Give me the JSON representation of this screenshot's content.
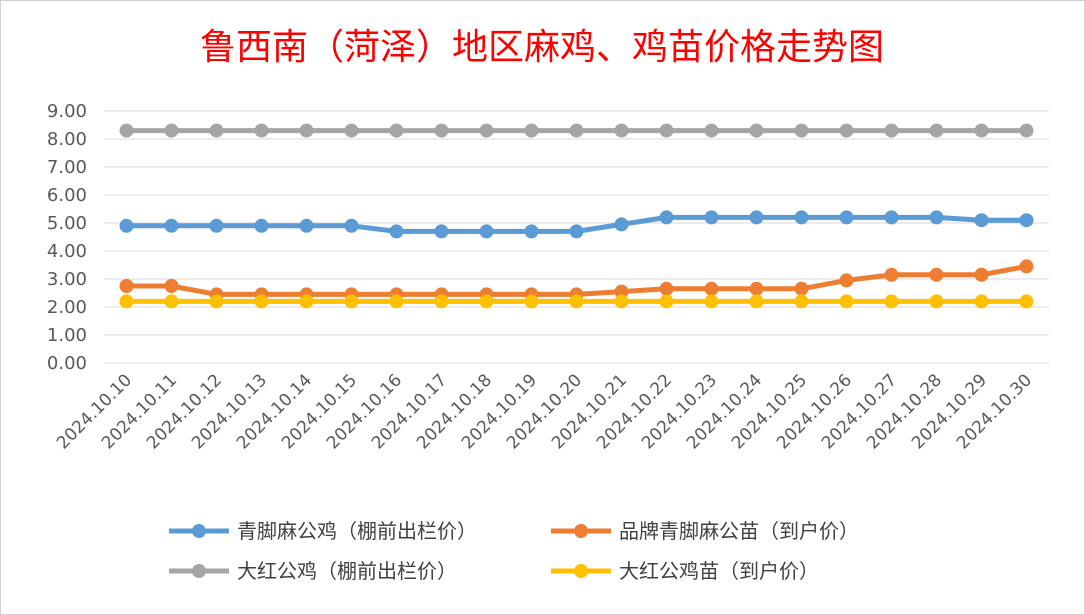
{
  "chart_data": {
    "type": "line",
    "title": "鲁西南（菏泽）地区麻鸡、鸡苗价格走势图",
    "xlabel": "",
    "ylabel": "",
    "ylim": [
      0,
      9
    ],
    "yticks": [
      "0.00",
      "1.00",
      "2.00",
      "3.00",
      "4.00",
      "5.00",
      "6.00",
      "7.00",
      "8.00",
      "9.00"
    ],
    "grid": true,
    "legend_position": "bottom",
    "categories": [
      "2024.10.10",
      "2024.10.11",
      "2024.10.12",
      "2024.10.13",
      "2024.10.14",
      "2024.10.15",
      "2024.10.16",
      "2024.10.17",
      "2024.10.18",
      "2024.10.19",
      "2024.10.20",
      "2024.10.21",
      "2024.10.22",
      "2024.10.23",
      "2024.10.24",
      "2024.10.25",
      "2024.10.26",
      "2024.10.27",
      "2024.10.28",
      "2024.10.29",
      "2024.10.30"
    ],
    "series": [
      {
        "name": "青脚麻公鸡（棚前出栏价）",
        "color": "#5b9bd5",
        "values": [
          4.9,
          4.9,
          4.9,
          4.9,
          4.9,
          4.9,
          4.7,
          4.7,
          4.7,
          4.7,
          4.7,
          4.95,
          5.2,
          5.2,
          5.2,
          5.2,
          5.2,
          5.2,
          5.2,
          5.1,
          5.1
        ]
      },
      {
        "name": "品牌青脚麻公苗（到户价）",
        "color": "#ed7d31",
        "values": [
          2.75,
          2.75,
          2.45,
          2.45,
          2.45,
          2.45,
          2.45,
          2.45,
          2.45,
          2.45,
          2.45,
          2.55,
          2.65,
          2.65,
          2.65,
          2.65,
          2.95,
          3.15,
          3.15,
          3.15,
          3.45
        ]
      },
      {
        "name": "大红公鸡（棚前出栏价）",
        "color": "#a5a5a5",
        "values": [
          8.3,
          8.3,
          8.3,
          8.3,
          8.3,
          8.3,
          8.3,
          8.3,
          8.3,
          8.3,
          8.3,
          8.3,
          8.3,
          8.3,
          8.3,
          8.3,
          8.3,
          8.3,
          8.3,
          8.3,
          8.3
        ]
      },
      {
        "name": "大红公鸡苗（到户价）",
        "color": "#ffc000",
        "values": [
          2.2,
          2.2,
          2.2,
          2.2,
          2.2,
          2.2,
          2.2,
          2.2,
          2.2,
          2.2,
          2.2,
          2.2,
          2.2,
          2.2,
          2.2,
          2.2,
          2.2,
          2.2,
          2.2,
          2.2,
          2.2
        ]
      }
    ]
  }
}
